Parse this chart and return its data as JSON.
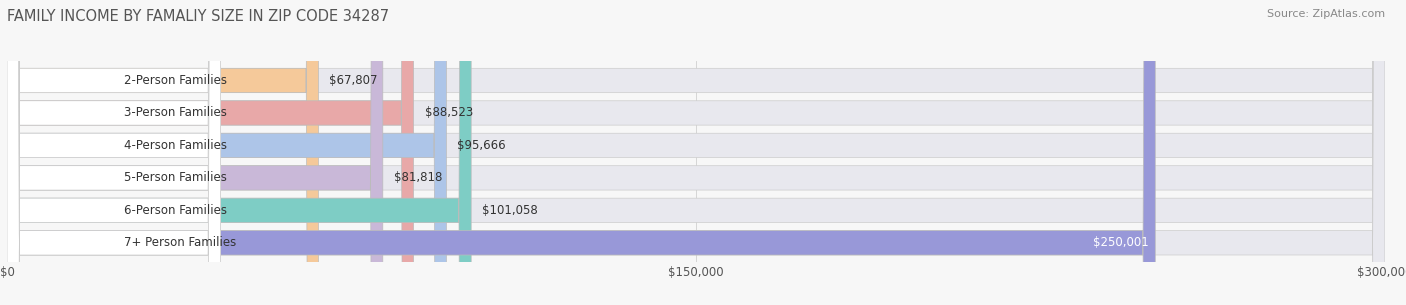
{
  "title": "FAMILY INCOME BY FAMALIY SIZE IN ZIP CODE 34287",
  "source": "Source: ZipAtlas.com",
  "categories": [
    "2-Person Families",
    "3-Person Families",
    "4-Person Families",
    "5-Person Families",
    "6-Person Families",
    "7+ Person Families"
  ],
  "values": [
    67807,
    88523,
    95666,
    81818,
    101058,
    250001
  ],
  "labels": [
    "$67,807",
    "$88,523",
    "$95,666",
    "$81,818",
    "$101,058",
    "$250,001"
  ],
  "bar_colors": [
    "#f5c99a",
    "#e8a8a8",
    "#adc5e8",
    "#c9b8d8",
    "#7ecdc5",
    "#9898d8"
  ],
  "bar_bg_color": "#e8e8ee",
  "xlim_max": 300000,
  "xticks": [
    0,
    150000,
    300000
  ],
  "xtick_labels": [
    "$0",
    "$150,000",
    "$300,000"
  ],
  "title_fontsize": 10.5,
  "cat_fontsize": 8.5,
  "val_fontsize": 8.5,
  "tick_fontsize": 8.5,
  "source_fontsize": 8.0
}
